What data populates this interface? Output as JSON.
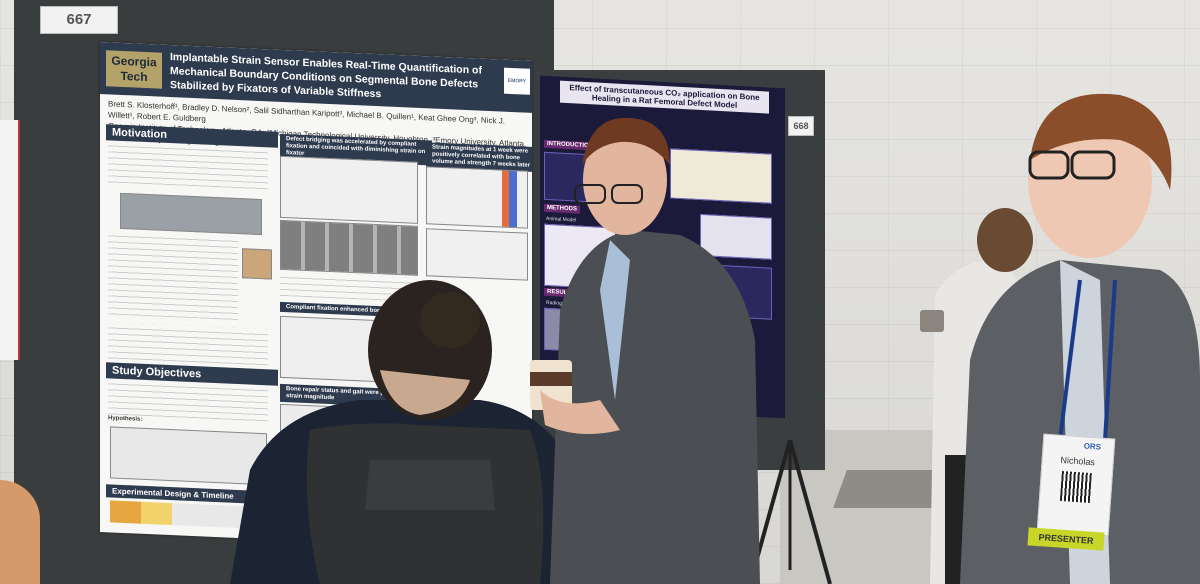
{
  "board": {
    "number_left": "667",
    "number_right": "668"
  },
  "poster_main": {
    "logo": "Georgia Tech",
    "title": "Implantable Strain Sensor Enables Real-Time Quantification of Mechanical Boundary Conditions on Segmental Bone Defects Stabilized by Fixators of Variable Stiffness",
    "authors": "Brett S. Klosterhoff¹, Bradley D. Nelson², Salil Sidharthan Karipott³, Michael B. Quillen¹, Keat Ghee Ong³, Nick J. Willett¹, Robert E. Guldberg",
    "affiliation": "Georgia Institute of Technology, Atlanta, GA; ²Michigan Technological University, Houghton, ³Emory University, Atlanta, GA; ⁴University of Oregon, Eugene, OR",
    "emory_label": "EMORY",
    "sections": {
      "motivation": "Motivation",
      "study_objectives": "Study Objectives",
      "experimental_design": "Experimental Design & Timeline",
      "defect_bridging": "Defect bridging was accelerated by compliant fixation and coincided with diminishing strain on fixator",
      "strain_magnitudes": "Strain magnitudes at 1 week were positively correlated with bone volume and strength 7 weeks later",
      "compliant_fixation": "Compliant fixation enhanced bone formation",
      "bone_repair_status": "Bone repair status and gait were predictive of strain magnitude"
    },
    "hypothesis_label": "Hypothesis:"
  },
  "poster_right": {
    "title": "Effect of transcutaneous CO₂ application on Bone Healing in a Rat Femoral Defect Model",
    "sections": {
      "intro": "INTRODUCTION",
      "methods": "METHODS",
      "results": "RESULTS"
    },
    "labels": {
      "animal_model": "Animal Model",
      "radiographic": "Radiographic Assessment"
    }
  },
  "badge": {
    "name": "Nicholas",
    "ribbon": "PRESENTER",
    "org_prefix": "ORS"
  }
}
